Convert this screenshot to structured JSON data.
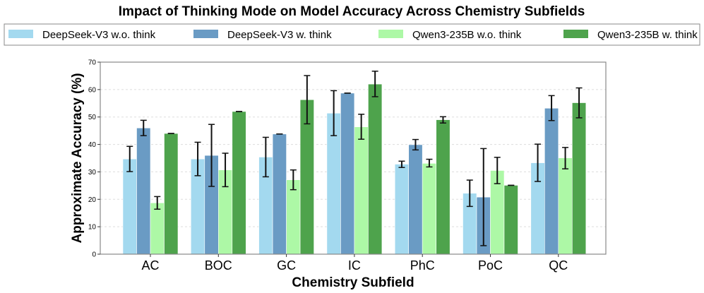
{
  "chart_data": {
    "type": "bar",
    "title": "Impact of Thinking Mode on Model Accuracy Across Chemistry Subfields",
    "xlabel": "Chemistry Subfield",
    "ylabel": "Approximate Accuracy (%)",
    "ylim": [
      0,
      70
    ],
    "yticks": [
      0,
      10,
      20,
      30,
      40,
      50,
      60,
      70
    ],
    "grid": "horizontal dashed",
    "legend_placement": "top",
    "categories": [
      "AC",
      "BOC",
      "GC",
      "IC",
      "PhC",
      "PoC",
      "QC"
    ],
    "series": [
      {
        "name": "DeepSeek-V3 w.o. think",
        "color": "#a3d9ef",
        "values": [
          34.7,
          34.7,
          35.4,
          51.4,
          32.8,
          22.2,
          33.3
        ],
        "err_low": [
          30.1,
          28.6,
          28.2,
          43.2,
          31.6,
          17.4,
          26.5
        ],
        "err_high": [
          39.3,
          40.8,
          42.6,
          59.6,
          33.9,
          27.0,
          40.1
        ]
      },
      {
        "name": "DeepSeek-V3 w. think",
        "color": "#6a9bc4",
        "values": [
          46.0,
          36.0,
          43.8,
          58.7,
          39.9,
          20.8,
          53.2
        ],
        "err_low": [
          43.2,
          24.7,
          43.8,
          58.7,
          38.0,
          3.1,
          48.7
        ],
        "err_high": [
          48.8,
          47.3,
          43.8,
          58.7,
          41.8,
          38.5,
          57.8
        ]
      },
      {
        "name": "Qwen3-235B w.o. think",
        "color": "#adf8a6",
        "values": [
          18.7,
          30.7,
          27.1,
          46.4,
          33.1,
          30.5,
          35.1
        ],
        "err_low": [
          16.4,
          24.6,
          23.5,
          41.9,
          31.8,
          25.7,
          31.1
        ],
        "err_high": [
          21.0,
          36.8,
          30.7,
          51.0,
          34.6,
          35.3,
          38.9
        ]
      },
      {
        "name": "Qwen3-235B w. think",
        "color": "#4ea34c",
        "values": [
          44.0,
          52.0,
          56.3,
          62.0,
          49.0,
          25.1,
          55.2
        ],
        "err_low": [
          44.0,
          52.0,
          47.5,
          57.4,
          47.8,
          25.1,
          49.7
        ],
        "err_high": [
          44.0,
          52.0,
          65.1,
          66.7,
          50.1,
          25.1,
          60.6
        ]
      }
    ]
  }
}
